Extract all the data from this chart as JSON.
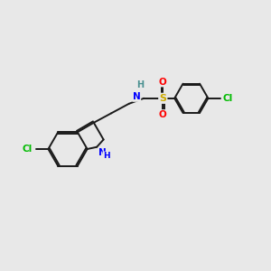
{
  "background_color": "#e8e8e8",
  "bond_color": "#1a1a1a",
  "colors": {
    "N": "#0000ff",
    "S": "#ccaa00",
    "O": "#ff0000",
    "Cl": "#00bb00",
    "H_label": "#4a9090"
  },
  "figsize": [
    3.0,
    3.0
  ],
  "dpi": 100
}
